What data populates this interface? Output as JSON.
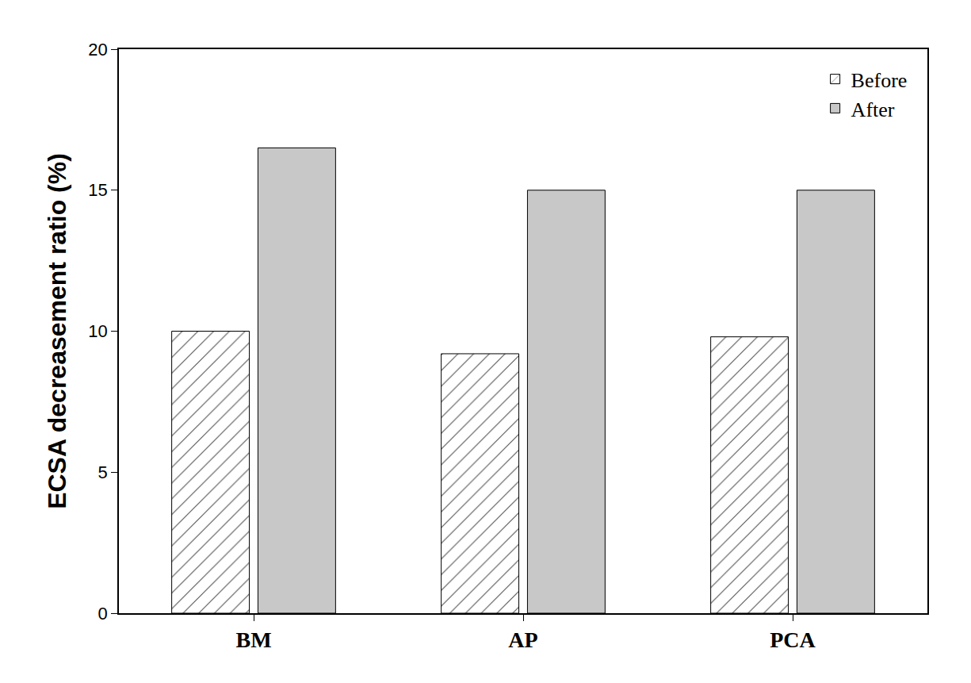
{
  "chart_data": {
    "type": "bar",
    "categories": [
      "BM",
      "AP",
      "PCA"
    ],
    "y_label": "ECSA decreasement ratio (%)",
    "series": [
      {
        "name": "Before",
        "color": "#ffffff",
        "marker": "hatched",
        "values": [
          10,
          9.2,
          9.8
        ]
      },
      {
        "name": "After",
        "color": "#c8c8c8",
        "marker": "solid",
        "values": [
          16.5,
          15,
          15
        ]
      }
    ],
    "ylim": [
      0,
      20
    ],
    "yticks": [
      0,
      5,
      10,
      15,
      20
    ],
    "grid": false,
    "legend": "top-right"
  }
}
